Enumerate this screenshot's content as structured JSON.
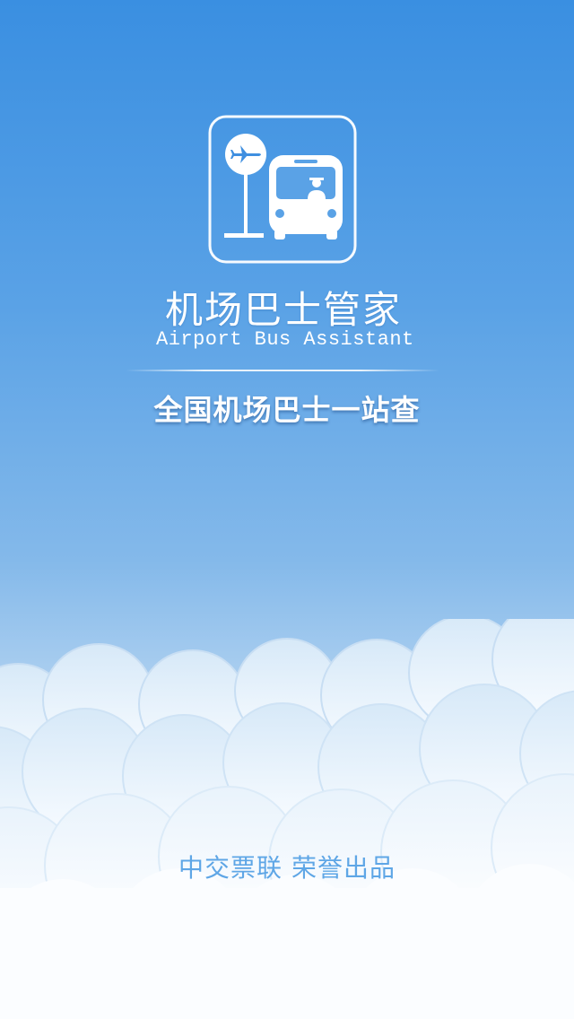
{
  "app": {
    "title": "机场巴士管家",
    "subtitle": "Airport Bus Assistant",
    "slogan": "全国机场巴士一站查",
    "credit": "中交票联  荣誉出品"
  },
  "icons": {
    "logo": "airport-bus-logo-icon",
    "plane": "airplane-icon",
    "bus": "bus-icon"
  },
  "colors": {
    "sky_top": "#3a8fe1",
    "sky_bottom": "#e6f1fb",
    "text": "#ffffff",
    "credit": "#5ea6e6"
  }
}
